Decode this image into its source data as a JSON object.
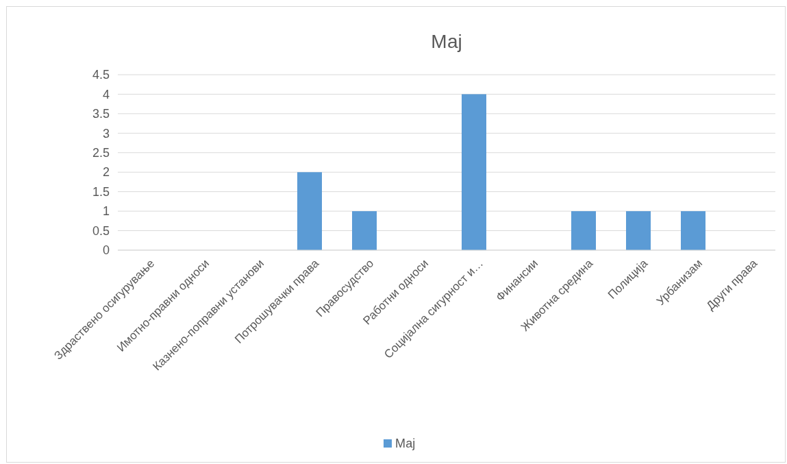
{
  "chart_data": {
    "type": "bar",
    "title": "Мај",
    "categories": [
      "Здраствено осигурување",
      "Имотно-правни односи",
      "Казнено-поправни установи",
      "Потрошувачки права",
      "Правосудство",
      "Работни односи",
      "Социјална сигурност и…",
      "Финансии",
      "Животна средина",
      "Полиција",
      "Урбанизам",
      "Други права"
    ],
    "series": [
      {
        "name": "Мај",
        "color": "#5b9bd5",
        "values": [
          0,
          0,
          0,
          2,
          1,
          0,
          4,
          0,
          1,
          1,
          1,
          0
        ]
      }
    ],
    "ylim": [
      0,
      4.5
    ],
    "yticks": [
      0,
      0.5,
      1,
      1.5,
      2,
      2.5,
      3,
      3.5,
      4,
      4.5
    ],
    "grid": "y",
    "legend": "bottom"
  }
}
